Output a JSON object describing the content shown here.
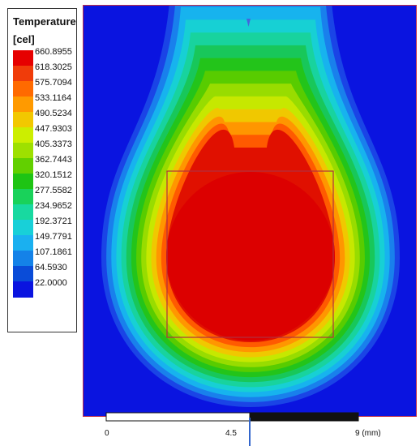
{
  "legend": {
    "title": "Temperature",
    "unit": "[cel]",
    "levels": [
      "660.8955",
      "618.3025",
      "575.7094",
      "533.1164",
      "490.5234",
      "447.9303",
      "405.3373",
      "362.7443",
      "320.1512",
      "277.5582",
      "234.9652",
      "192.3721",
      "149.7791",
      "107.1861",
      "64.5930",
      "22.0000"
    ],
    "colors": [
      "#e60000",
      "#f03c0a",
      "#ff6a00",
      "#ff9a00",
      "#f2c800",
      "#ccee00",
      "#9ee000",
      "#62d000",
      "#1ec414",
      "#19d25a",
      "#18d9a0",
      "#18d0d8",
      "#1ab0f0",
      "#1482e8",
      "#0a4cd8",
      "#0a14e0"
    ]
  },
  "contour": {
    "band_colors": [
      "#1a44e6",
      "#1980ec",
      "#17b3ee",
      "#17d0d4",
      "#18d39e",
      "#18c75a",
      "#23c41a",
      "#58cc00",
      "#98dc00",
      "#c6e800",
      "#f0c800",
      "#ff9600",
      "#ff5a00",
      "#e01000"
    ],
    "core_color": "#dc0000",
    "frame_color": "#b03040"
  },
  "scale": {
    "ticks": [
      "0",
      "4.5",
      "9 (mm)"
    ]
  }
}
